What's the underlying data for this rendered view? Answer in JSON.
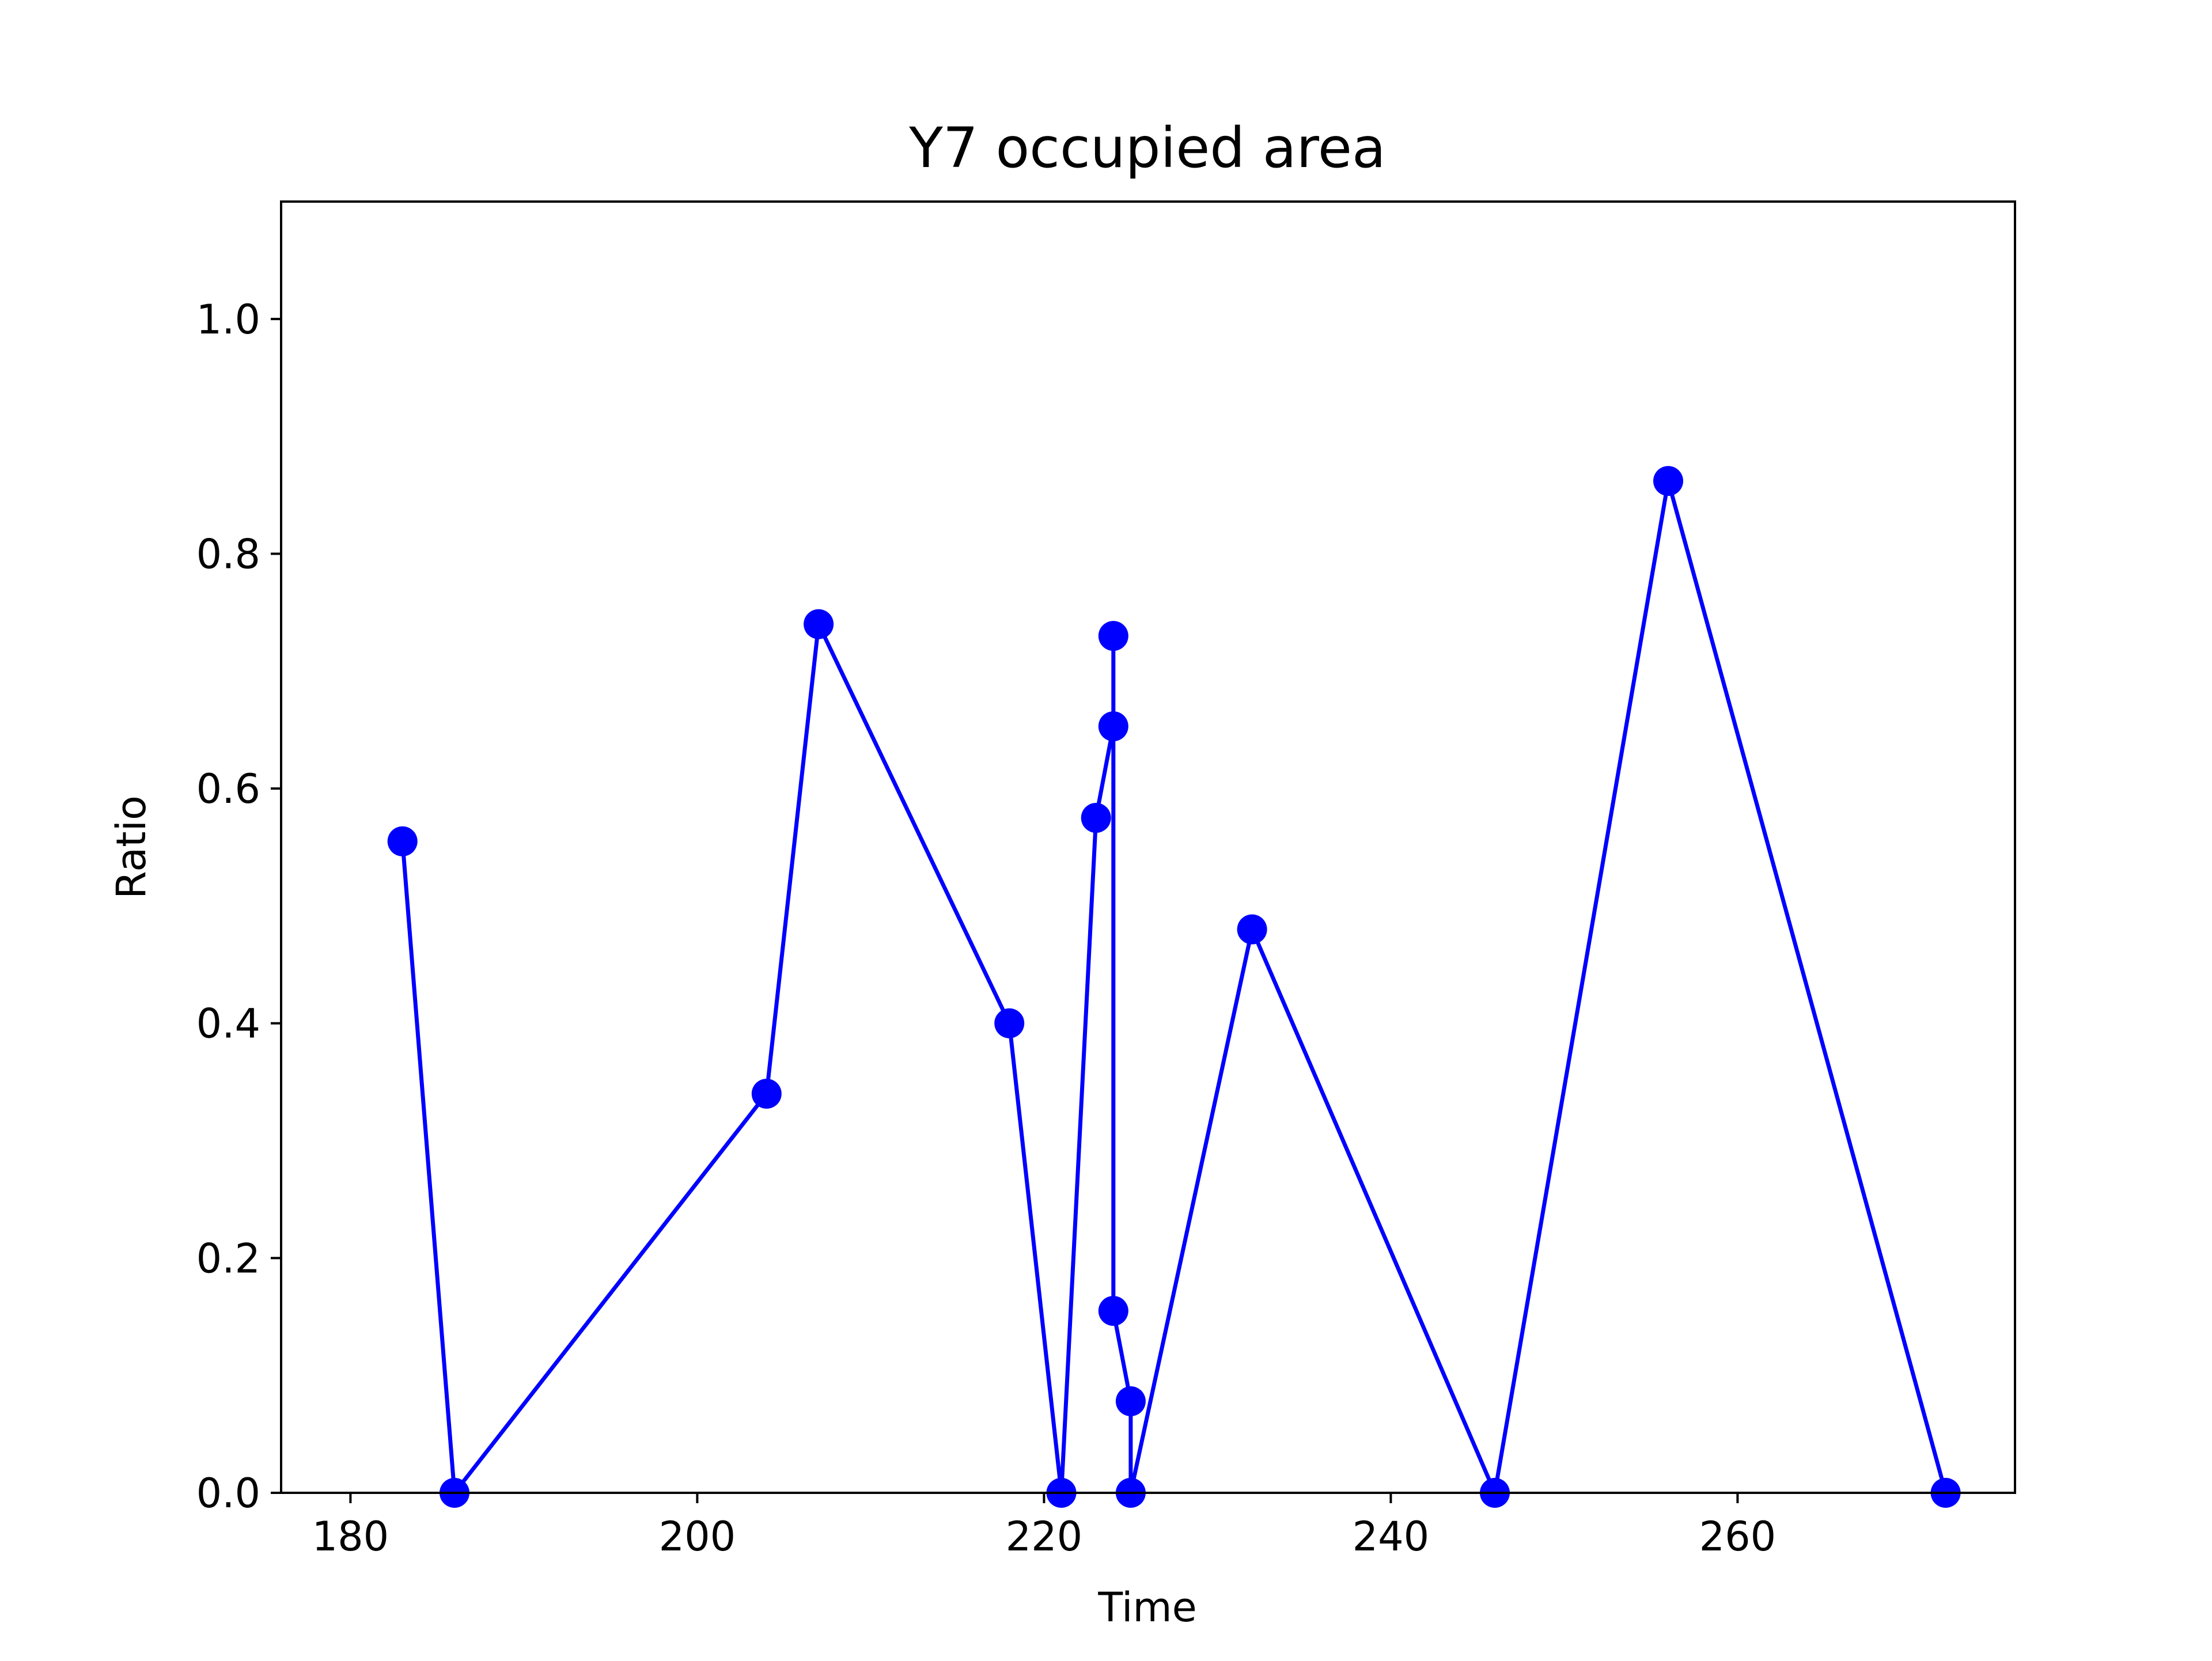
{
  "chart_data": {
    "type": "line",
    "title": "Y7 occupied area",
    "xlabel": "Time",
    "ylabel": "Ratio",
    "xlim": [
      176,
      276
    ],
    "ylim": [
      0.0,
      1.1
    ],
    "x_ticks": [
      180,
      200,
      220,
      240,
      260
    ],
    "x_tick_labels": [
      "180",
      "200",
      "220",
      "240",
      "260"
    ],
    "y_ticks": [
      0.0,
      0.2,
      0.4,
      0.6,
      0.8,
      1.0
    ],
    "y_tick_labels": [
      "0.0",
      "0.2",
      "0.4",
      "0.6",
      "0.8",
      "1.0"
    ],
    "grid": false,
    "legend": "none",
    "series": [
      {
        "color": "#0000ff",
        "marker": "circle",
        "x": [
          183,
          186,
          204,
          207,
          218,
          221,
          223,
          224,
          224,
          224,
          225,
          225,
          232,
          246,
          256,
          272
        ],
        "y": [
          0.555,
          0.0,
          0.34,
          0.74,
          0.4,
          0.0,
          0.575,
          0.653,
          0.73,
          0.155,
          0.078,
          0.0,
          0.48,
          0.0,
          0.862,
          0.0
        ]
      }
    ]
  }
}
